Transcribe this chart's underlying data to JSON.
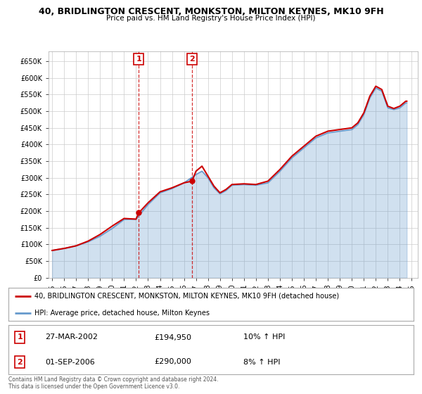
{
  "title": "40, BRIDLINGTON CRESCENT, MONKSTON, MILTON KEYNES, MK10 9FH",
  "subtitle": "Price paid vs. HM Land Registry's House Price Index (HPI)",
  "ylim": [
    0,
    680000
  ],
  "yticks": [
    0,
    50000,
    100000,
    150000,
    200000,
    250000,
    300000,
    350000,
    400000,
    450000,
    500000,
    550000,
    600000,
    650000
  ],
  "ytick_labels": [
    "£0",
    "£50K",
    "£100K",
    "£150K",
    "£200K",
    "£250K",
    "£300K",
    "£350K",
    "£400K",
    "£450K",
    "£500K",
    "£550K",
    "£600K",
    "£650K"
  ],
  "xlim_start": 1994.7,
  "xlim_end": 2025.5,
  "xticks": [
    1995,
    1996,
    1997,
    1998,
    1999,
    2000,
    2001,
    2002,
    2003,
    2004,
    2005,
    2006,
    2007,
    2008,
    2009,
    2010,
    2011,
    2012,
    2013,
    2014,
    2015,
    2016,
    2017,
    2018,
    2019,
    2020,
    2021,
    2022,
    2023,
    2024,
    2025
  ],
  "sale1_x": 2002.23,
  "sale1_y": 194950,
  "sale2_x": 2006.67,
  "sale2_y": 290000,
  "sale1_date": "27-MAR-2002",
  "sale1_price": "£194,950",
  "sale1_hpi": "10% ↑ HPI",
  "sale2_date": "01-SEP-2006",
  "sale2_price": "£290,000",
  "sale2_hpi": "8% ↑ HPI",
  "sale_color": "#cc0000",
  "hpi_color": "#6699cc",
  "grid_color": "#cccccc",
  "legend_label_red": "40, BRIDLINGTON CRESCENT, MONKSTON, MILTON KEYNES, MK10 9FH (detached house)",
  "legend_label_blue": "HPI: Average price, detached house, Milton Keynes",
  "footer1": "Contains HM Land Registry data © Crown copyright and database right 2024.",
  "footer2": "This data is licensed under the Open Government Licence v3.0."
}
